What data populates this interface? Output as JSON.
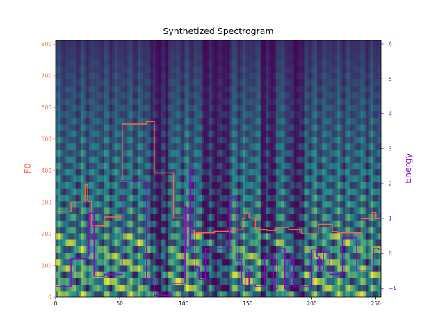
{
  "chart_data": {
    "type": "line",
    "title": "Synthetized Spectrogram",
    "xlabel": "",
    "xlim": [
      0,
      254
    ],
    "x_ticks": [
      0,
      50,
      100,
      150,
      200,
      250
    ],
    "background": "heatmap",
    "colors": {
      "f0": "#ff6347",
      "energy": "#9400d3",
      "heatmap_low": "#440154",
      "heatmap_mid": "#21918c",
      "heatmap_high": "#fde725"
    },
    "left_axis": {
      "label": "F0",
      "ylim": [
        0,
        812
      ],
      "ticks": [
        0,
        100,
        200,
        300,
        400,
        500,
        600,
        700,
        800
      ]
    },
    "right_axis": {
      "label": "Energy",
      "ylim": [
        -1.25,
        6.1
      ],
      "ticks": [
        -1,
        0,
        1,
        2,
        3,
        4,
        5,
        6
      ]
    },
    "series": [
      {
        "axis": "left",
        "points": [
          [
            0,
            270
          ],
          [
            12,
            270
          ],
          [
            12,
            300
          ],
          [
            23,
            300
          ],
          [
            23,
            355
          ],
          [
            25,
            355
          ],
          [
            25,
            302
          ],
          [
            28,
            302
          ],
          [
            28,
            225
          ],
          [
            38,
            225
          ],
          [
            38,
            253
          ],
          [
            52,
            253
          ],
          [
            52,
            548
          ],
          [
            71,
            548
          ],
          [
            71,
            555
          ],
          [
            77,
            555
          ],
          [
            77,
            393
          ],
          [
            92,
            393
          ],
          [
            92,
            250
          ],
          [
            101,
            250
          ],
          [
            101,
            212
          ],
          [
            108,
            212
          ],
          [
            108,
            203
          ],
          [
            124,
            203
          ],
          [
            124,
            208
          ],
          [
            140,
            208
          ],
          [
            140,
            213
          ],
          [
            146,
            213
          ],
          [
            146,
            248
          ],
          [
            148,
            248
          ],
          [
            148,
            265
          ],
          [
            151,
            265
          ],
          [
            151,
            250
          ],
          [
            156,
            250
          ],
          [
            156,
            214
          ],
          [
            165,
            214
          ],
          [
            165,
            211
          ],
          [
            172,
            211
          ],
          [
            172,
            220
          ],
          [
            182,
            220
          ],
          [
            182,
            214
          ],
          [
            192,
            214
          ],
          [
            192,
            200
          ],
          [
            205,
            200
          ],
          [
            205,
            230
          ],
          [
            216,
            230
          ],
          [
            216,
            207
          ],
          [
            220,
            207
          ],
          [
            220,
            203
          ],
          [
            239,
            203
          ],
          [
            239,
            248
          ],
          [
            247,
            248
          ],
          [
            247,
            268
          ],
          [
            250,
            268
          ],
          [
            250,
            248
          ],
          [
            254,
            248
          ]
        ]
      },
      {
        "axis": "right",
        "points": [
          [
            0,
            -0.95
          ],
          [
            12,
            -0.95
          ],
          [
            12,
            -0.15
          ],
          [
            24,
            -0.15
          ],
          [
            24,
            -0.05
          ],
          [
            26,
            -0.05
          ],
          [
            26,
            1.15
          ],
          [
            30,
            1.15
          ],
          [
            30,
            -0.65
          ],
          [
            38,
            -0.65
          ],
          [
            38,
            -0.6
          ],
          [
            52,
            -0.6
          ],
          [
            52,
            2.1
          ],
          [
            71,
            2.1
          ],
          [
            71,
            -0.75
          ],
          [
            77,
            -0.75
          ],
          [
            77,
            -1.2
          ],
          [
            91,
            -1.2
          ],
          [
            91,
            -0.85
          ],
          [
            101,
            -0.85
          ],
          [
            101,
            1.35
          ],
          [
            102,
            1.35
          ],
          [
            102,
            0.15
          ],
          [
            105,
            0.15
          ],
          [
            105,
            2.45
          ],
          [
            109,
            2.45
          ],
          [
            109,
            -0.4
          ],
          [
            112,
            -0.4
          ],
          [
            112,
            -0.75
          ],
          [
            117,
            -0.75
          ],
          [
            117,
            0.15
          ],
          [
            136,
            0.15
          ],
          [
            136,
            1.6
          ],
          [
            141,
            1.6
          ],
          [
            141,
            -0.2
          ],
          [
            145,
            -0.2
          ],
          [
            145,
            -0.9
          ],
          [
            148,
            -0.9
          ],
          [
            148,
            -0.45
          ],
          [
            151,
            -0.45
          ],
          [
            151,
            -0.9
          ],
          [
            156,
            -0.9
          ],
          [
            156,
            -0.95
          ],
          [
            163,
            -0.95
          ],
          [
            163,
            -0.1
          ],
          [
            170,
            -0.1
          ],
          [
            170,
            -1.0
          ],
          [
            173,
            -1.0
          ],
          [
            173,
            0.15
          ],
          [
            179,
            0.15
          ],
          [
            179,
            -1.0
          ],
          [
            182,
            -1.0
          ],
          [
            182,
            -0.15
          ],
          [
            186,
            -0.15
          ],
          [
            186,
            -0.95
          ],
          [
            200,
            -0.95
          ],
          [
            200,
            0.1
          ],
          [
            204,
            0.1
          ],
          [
            204,
            -0.1
          ],
          [
            206,
            -0.1
          ],
          [
            206,
            -0.5
          ],
          [
            209,
            -0.5
          ],
          [
            209,
            0.05
          ],
          [
            214,
            0.05
          ],
          [
            214,
            -0.6
          ],
          [
            224,
            -0.6
          ],
          [
            224,
            0.45
          ],
          [
            235,
            0.45
          ],
          [
            235,
            -0.5
          ],
          [
            248,
            -0.5
          ],
          [
            248,
            0.15
          ],
          [
            252,
            0.15
          ],
          [
            252,
            0.1
          ],
          [
            254,
            0.1
          ]
        ]
      }
    ]
  }
}
